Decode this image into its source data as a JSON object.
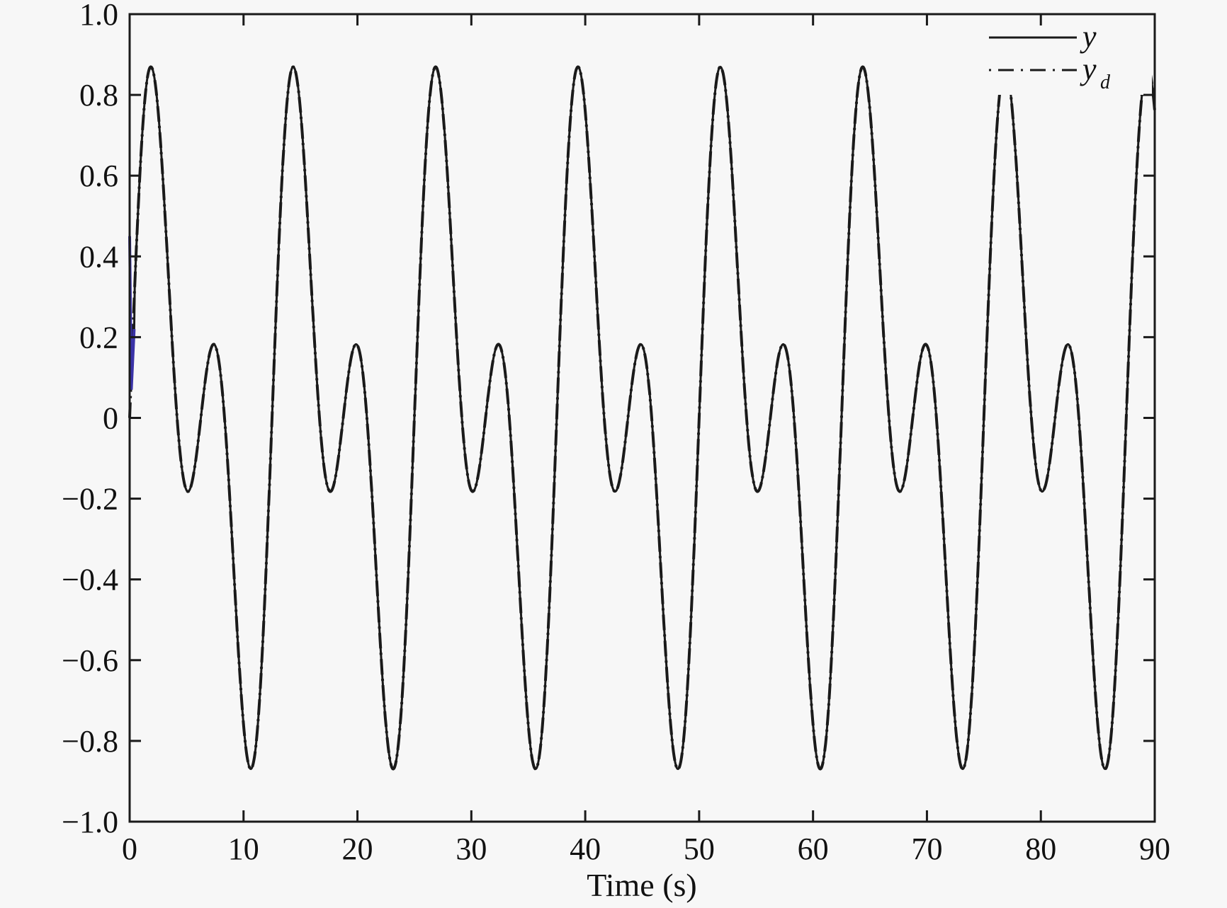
{
  "chart_data": {
    "type": "line",
    "title": "",
    "xlabel": "Time (s)",
    "ylabel": "",
    "xlim": [
      0,
      90
    ],
    "ylim": [
      -1.0,
      1.0
    ],
    "grid": false,
    "legend_position": "upper right",
    "x_ticks": [
      0,
      10,
      20,
      30,
      40,
      50,
      60,
      70,
      80,
      90
    ],
    "x_tick_labels": [
      "0",
      "10",
      "20",
      "30",
      "40",
      "50",
      "60",
      "70",
      "80",
      "90"
    ],
    "y_ticks": [
      1.0,
      0.8,
      0.6,
      0.4,
      0.2,
      0,
      -0.2,
      -0.4,
      -0.6,
      -0.8,
      -1.0
    ],
    "y_tick_labels": [
      "1.0",
      "0.8",
      "0.6",
      "0.4",
      "0.2",
      "0",
      "−0.2",
      "−0.4",
      "−0.6",
      "−0.8",
      "−1.0"
    ],
    "series": [
      {
        "name": "y",
        "legend_label": "y",
        "style": "solid",
        "color": "#1a1a1a",
        "model": "0.494*(sin(2*pi*t/12.5)+sin(4*pi*t/12.5))",
        "initial_transient": [
          [
            0,
            0.45
          ],
          [
            0.15,
            0.07
          ],
          [
            0.4,
            0.22
          ]
        ],
        "x": [
          0,
          2.0,
          5.1,
          7.4,
          10.7,
          14.5,
          17.6,
          19.9,
          23.2,
          27.0,
          30.1,
          32.4,
          35.7,
          39.5,
          42.6,
          44.9,
          48.2,
          52.0,
          55.1,
          57.4,
          60.7,
          64.5,
          67.6,
          69.9,
          73.2,
          77.0,
          80.1,
          82.4,
          85.7,
          90
        ],
        "values": [
          0.45,
          0.87,
          -0.18,
          0.18,
          -0.87,
          0.87,
          -0.18,
          0.18,
          -0.87,
          0.87,
          -0.18,
          0.18,
          -0.87,
          0.87,
          -0.18,
          0.18,
          -0.87,
          0.87,
          -0.18,
          0.18,
          -0.87,
          0.87,
          -0.18,
          0.18,
          -0.87,
          0.87,
          -0.18,
          0.18,
          -0.87,
          0.86
        ]
      },
      {
        "name": "y_d",
        "legend_label": "y",
        "legend_subscript": "d",
        "style": "dashdot",
        "color": "#1a1a1a",
        "model": "0.494*(sin(2*pi*t/12.5)+sin(4*pi*t/12.5))",
        "x": [
          0,
          2.0,
          5.1,
          7.4,
          10.7,
          14.5,
          17.6,
          19.9,
          23.2,
          27.0,
          30.1,
          32.4,
          35.7,
          39.5,
          42.6,
          44.9,
          48.2,
          52.0,
          55.1,
          57.4,
          60.7,
          64.5,
          67.6,
          69.9,
          73.2,
          77.0,
          80.1,
          82.4,
          85.7,
          90
        ],
        "values": [
          0,
          0.87,
          -0.18,
          0.18,
          -0.87,
          0.87,
          -0.18,
          0.18,
          -0.87,
          0.87,
          -0.18,
          0.18,
          -0.87,
          0.87,
          -0.18,
          0.18,
          -0.87,
          0.87,
          -0.18,
          0.18,
          -0.87,
          0.87,
          -0.18,
          0.18,
          -0.87,
          0.87,
          -0.18,
          0.18,
          -0.87,
          0.86
        ]
      }
    ],
    "period_s": 12.5,
    "amplitude": 0.494
  },
  "colors": {
    "background": "#f7f7f7",
    "axes": "#1a1a1a",
    "line": "#1a1a1a",
    "transient_tint": "#3a33a8"
  }
}
